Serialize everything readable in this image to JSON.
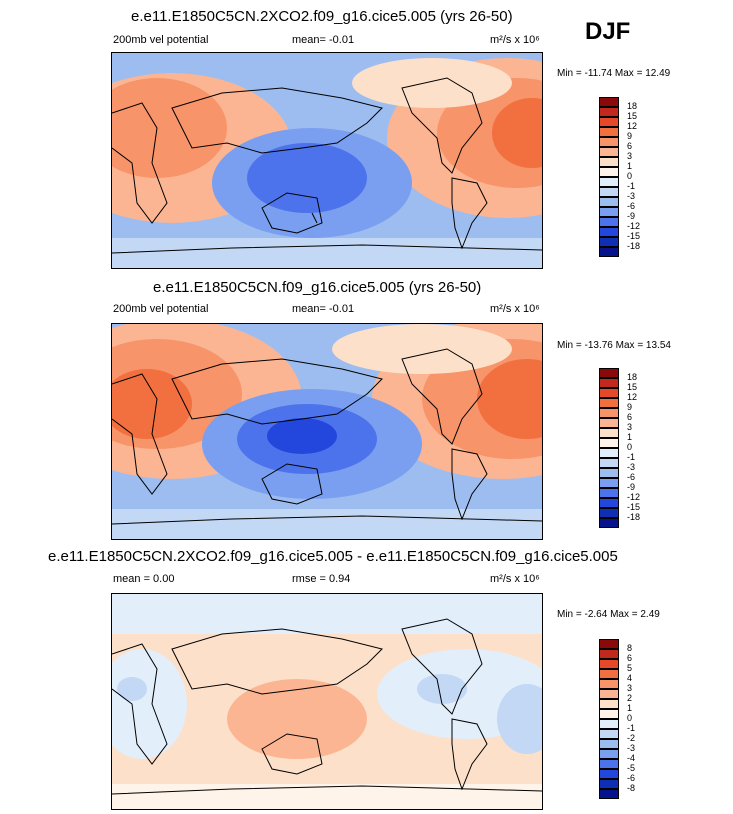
{
  "season": "DJF",
  "panels": [
    {
      "title": "e.e11.E1850C5CN.2XCO2.f09_g16.cice5.005 (yrs 26-50)",
      "left_label": "200mb vel potential",
      "mid_label": "mean=  -0.01",
      "units": "m²/s x 10⁶",
      "min_max": "Min = -11.74 Max =  12.49"
    },
    {
      "title": "e.e11.E1850C5CN.f09_g16.cice5.005 (yrs 26-50)",
      "left_label": "200mb vel potential",
      "mid_label": "mean=  -0.01",
      "units": "m²/s x 10⁶",
      "min_max": "Min = -13.76 Max =  13.54"
    },
    {
      "title": "e.e11.E1850C5CN.2XCO2.f09_g16.cice5.005 - e.e11.E1850C5CN.f09_g16.cice5.005",
      "left_label": "mean =  0.00",
      "mid_label": "rmse =  0.94",
      "units": "m²/s x 10⁶",
      "min_max": "Min = -2.64 Max =  2.49"
    }
  ],
  "chart_data": [
    {
      "type": "heatmap",
      "variable": "200mb velocity potential",
      "case": "e.e11.E1850C5CN.2XCO2.f09_g16.cice5.005",
      "years": "26-50",
      "season": "DJF",
      "mean": -0.01,
      "min": -11.74,
      "max": 12.49,
      "colorbar_levels": [
        "18",
        "15",
        "12",
        "9",
        "6",
        "3",
        "1",
        "0",
        "-1",
        "-3",
        "-6",
        "-9",
        "-12",
        "-15",
        "-18"
      ],
      "colors": [
        "#8a0a0c",
        "#c3281c",
        "#e5492a",
        "#f2703f",
        "#f79469",
        "#fbb592",
        "#fde0c9",
        "#fff4ea",
        "#e2eefa",
        "#c2d8f5",
        "#9dbdf0",
        "#7a9ff0",
        "#4d73ec",
        "#2347dc",
        "#0f2fb4",
        "#06138a"
      ]
    },
    {
      "type": "heatmap",
      "variable": "200mb velocity potential",
      "case": "e.e11.E1850C5CN.f09_g16.cice5.005",
      "years": "26-50",
      "season": "DJF",
      "mean": -0.01,
      "min": -13.76,
      "max": 13.54,
      "colorbar_levels": [
        "18",
        "15",
        "12",
        "9",
        "6",
        "3",
        "1",
        "0",
        "-1",
        "-3",
        "-6",
        "-9",
        "-12",
        "-15",
        "-18"
      ],
      "colors": [
        "#8a0a0c",
        "#c3281c",
        "#e5492a",
        "#f2703f",
        "#f79469",
        "#fbb592",
        "#fde0c9",
        "#fff4ea",
        "#e2eefa",
        "#c2d8f5",
        "#9dbdf0",
        "#7a9ff0",
        "#4d73ec",
        "#2347dc",
        "#0f2fb4",
        "#06138a"
      ]
    },
    {
      "type": "heatmap",
      "variable": "200mb velocity potential difference",
      "case": "2XCO2 - control",
      "season": "DJF",
      "mean": 0.0,
      "rmse": 0.94,
      "min": -2.64,
      "max": 2.49,
      "colorbar_levels": [
        "8",
        "6",
        "5",
        "4",
        "3",
        "2",
        "1",
        "0",
        "-1",
        "-2",
        "-3",
        "-4",
        "-5",
        "-6",
        "-8"
      ],
      "colors": [
        "#8a0a0c",
        "#c3281c",
        "#e5492a",
        "#f2703f",
        "#f79469",
        "#fbb592",
        "#fde0c9",
        "#fff4ea",
        "#e2eefa",
        "#c2d8f5",
        "#9dbdf0",
        "#7a9ff0",
        "#4d73ec",
        "#2347dc",
        "#0f2fb4",
        "#06138a"
      ]
    }
  ]
}
